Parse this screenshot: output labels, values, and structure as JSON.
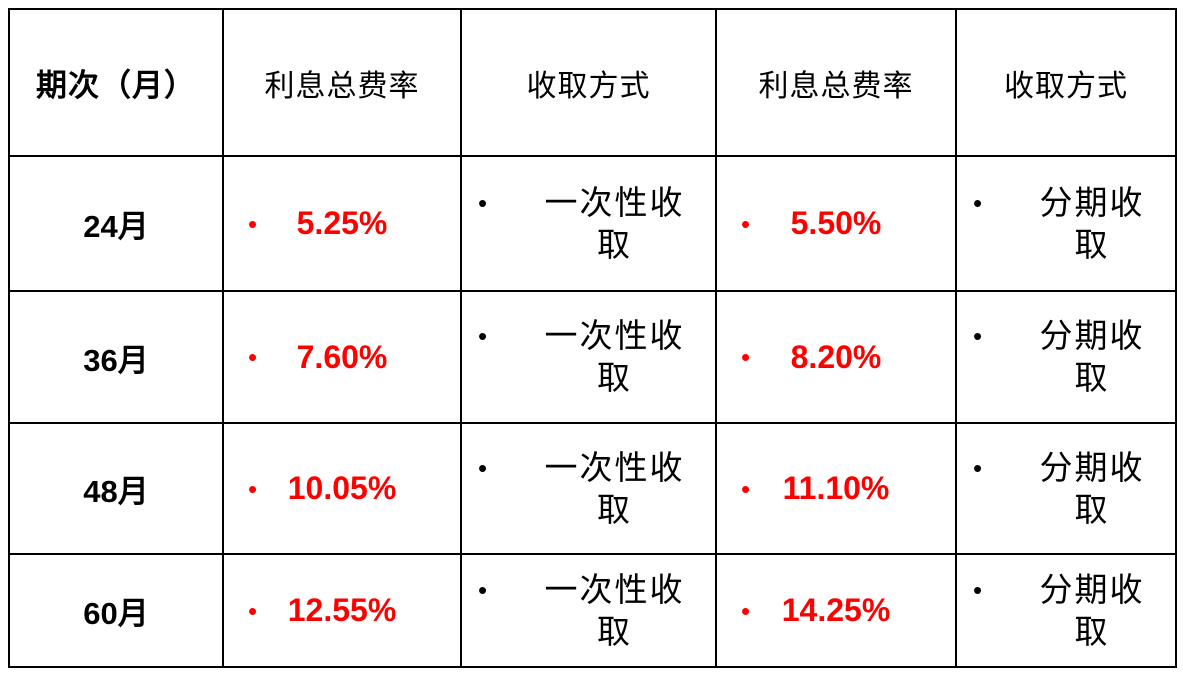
{
  "bullet": "•",
  "colors": {
    "rate_red": "#ff0000",
    "border_black": "#000000",
    "background": "#ffffff"
  },
  "table": {
    "columns": [
      "期次（月）",
      "利息总费率",
      "收取方式",
      "利息总费率",
      "收取方式"
    ],
    "rows": [
      {
        "period": "24月",
        "rate_once": "5.25%",
        "method_once": "一次性收取",
        "rate_install": "5.50%",
        "method_install": "分期收取"
      },
      {
        "period": "36月",
        "rate_once": "7.60%",
        "method_once": "一次性收取",
        "rate_install": "8.20%",
        "method_install": "分期收取"
      },
      {
        "period": "48月",
        "rate_once": "10.05%",
        "method_once": "一次性收取",
        "rate_install": "11.10%",
        "method_install": "分期收取"
      },
      {
        "period": "60月",
        "rate_once": "12.55%",
        "method_once": "一次性收取",
        "rate_install": "14.25%",
        "method_install": "分期收取"
      }
    ]
  },
  "chart_data": {
    "type": "table",
    "title": "",
    "columns": [
      "期次（月）",
      "利息总费率",
      "收取方式",
      "利息总费率",
      "收取方式"
    ],
    "rows": [
      [
        "24月",
        "5.25%",
        "一次性收取",
        "5.50%",
        "分期收取"
      ],
      [
        "36月",
        "7.60%",
        "一次性收取",
        "8.20%",
        "分期收取"
      ],
      [
        "48月",
        "10.05%",
        "一次性收取",
        "11.10%",
        "分期收取"
      ],
      [
        "60月",
        "12.55%",
        "一次性收取",
        "14.25%",
        "分期收取"
      ]
    ]
  }
}
